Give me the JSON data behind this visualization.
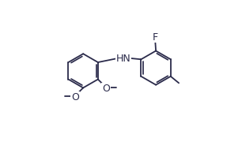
{
  "bg_color": "#ffffff",
  "line_color": "#2b2b4b",
  "text_color": "#2b2b4b",
  "bond_lw": 1.3,
  "dbo": 0.012,
  "font_size": 9.0,
  "small_font": 8.0,
  "figsize": [
    3.06,
    1.89
  ],
  "dpi": 100,
  "xlim": [
    0.0,
    1.0
  ],
  "ylim": [
    0.0,
    1.0
  ]
}
